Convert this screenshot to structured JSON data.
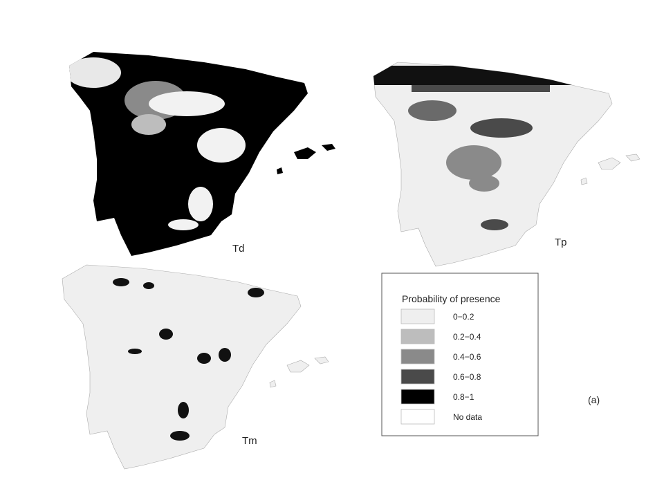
{
  "maps": [
    {
      "label": "Td"
    },
    {
      "label": "Tp"
    },
    {
      "label": "Tm"
    }
  ],
  "legend": {
    "title": "Probability of presence",
    "items": [
      {
        "label": "0−0.2",
        "color": "#efefef"
      },
      {
        "label": "0.2−0.4",
        "color": "#bdbdbd"
      },
      {
        "label": "0.4−0.6",
        "color": "#8a8a8a"
      },
      {
        "label": "0.6−0.8",
        "color": "#4a4a4a"
      },
      {
        "label": "0.8−1",
        "color": "#000000"
      },
      {
        "label": "No data",
        "color": "#ffffff"
      }
    ]
  },
  "panel_label": "(a)"
}
